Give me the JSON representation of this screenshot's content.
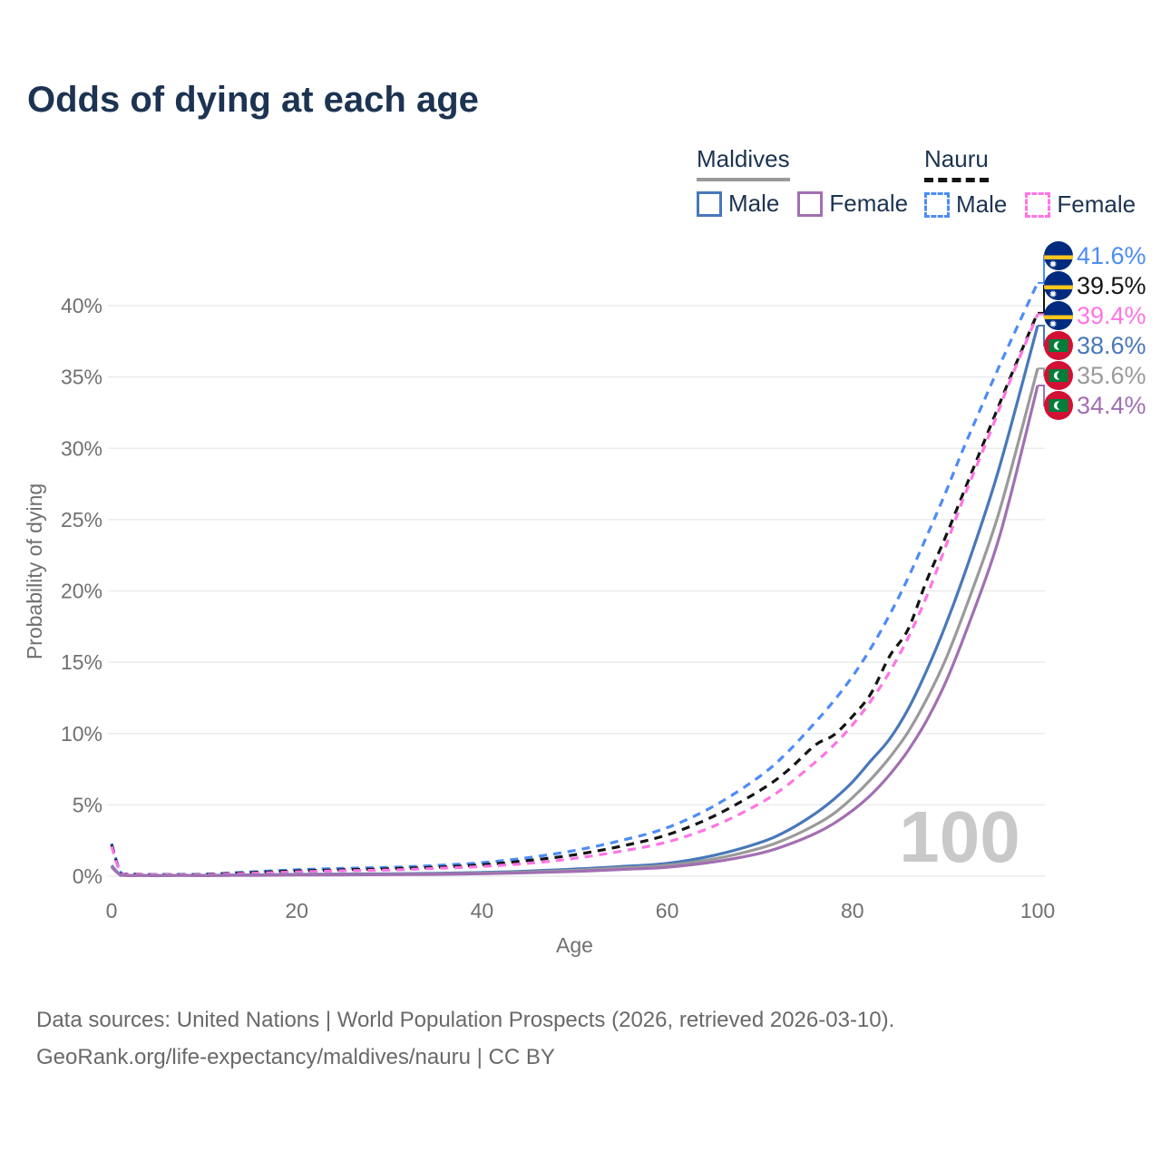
{
  "title": "Odds of dying at each age",
  "colors": {
    "title_navy": "#1c3351",
    "axis_gray": "#707070",
    "grid_gray": "#ececec",
    "watermark_gray": "#c9c9c9",
    "footer_gray": "#696969"
  },
  "legend": {
    "groups": [
      {
        "country": "Maldives",
        "style": "solid",
        "sample_color": "#9a9a9a",
        "items": [
          {
            "label": "Male",
            "color": "#4878b9"
          },
          {
            "label": "Female",
            "color": "#a26fb2"
          }
        ]
      },
      {
        "country": "Nauru",
        "style": "dashed",
        "sample_color": "#141414",
        "items": [
          {
            "label": "Male",
            "color": "#4d8cf5"
          },
          {
            "label": "Female",
            "color": "#ff74e4"
          }
        ]
      }
    ]
  },
  "chart_data": {
    "type": "line",
    "title": "Odds of dying at each age",
    "xlabel": "Age",
    "ylabel": "Probability of dying",
    "xlim": [
      0,
      100
    ],
    "ylim": [
      0,
      44
    ],
    "x_ticks": [
      0,
      20,
      40,
      60,
      80,
      100
    ],
    "y_ticks": [
      0,
      5,
      10,
      15,
      20,
      25,
      30,
      35,
      40
    ],
    "y_tick_suffix": "%",
    "grid": true,
    "legend_position": "top-right",
    "watermark": "100",
    "x": [
      0,
      1,
      2,
      5,
      10,
      15,
      20,
      25,
      30,
      35,
      40,
      45,
      50,
      55,
      60,
      65,
      70,
      73,
      76,
      78,
      80,
      82,
      84,
      86,
      88,
      90,
      92,
      95,
      97,
      100
    ],
    "series": [
      {
        "name": "Nauru Male",
        "country": "Nauru",
        "sex": "Male",
        "style": "dashed",
        "color": "#4d8cf5",
        "flag_icon": "nauru-flag",
        "end_label": "41.6%",
        "values": [
          2.3,
          0.25,
          0.15,
          0.12,
          0.14,
          0.3,
          0.45,
          0.55,
          0.62,
          0.75,
          0.95,
          1.3,
          1.8,
          2.5,
          3.4,
          4.9,
          7.0,
          8.7,
          10.8,
          12.3,
          14.0,
          16.0,
          18.3,
          20.9,
          23.8,
          26.8,
          30.0,
          34.5,
          37.4,
          41.6
        ]
      },
      {
        "name": "Nauru",
        "country": "Nauru",
        "sex": "Both",
        "style": "dashed",
        "color": "#141414",
        "flag_icon": "nauru-flag",
        "end_label": "39.5%",
        "values": [
          2.2,
          0.22,
          0.14,
          0.11,
          0.12,
          0.25,
          0.37,
          0.45,
          0.52,
          0.63,
          0.8,
          1.1,
          1.5,
          2.1,
          2.9,
          4.2,
          6.0,
          7.4,
          9.2,
          9.9,
          11.2,
          12.8,
          15.4,
          17.3,
          20.7,
          23.7,
          26.9,
          31.7,
          34.9,
          39.5
        ]
      },
      {
        "name": "Nauru Female",
        "country": "Nauru",
        "sex": "Female",
        "style": "dashed",
        "color": "#ff74e4",
        "flag_icon": "nauru-flag",
        "end_label": "39.4%",
        "values": [
          2.1,
          0.2,
          0.12,
          0.1,
          0.1,
          0.2,
          0.3,
          0.38,
          0.43,
          0.55,
          0.68,
          0.9,
          1.25,
          1.75,
          2.4,
          3.5,
          5.1,
          6.4,
          8.0,
          9.2,
          10.6,
          12.3,
          14.3,
          16.7,
          19.6,
          23.0,
          26.5,
          31.3,
          34.7,
          39.4
        ]
      },
      {
        "name": "Maldives Male",
        "country": "Maldives",
        "sex": "Male",
        "style": "solid",
        "color": "#4878b9",
        "flag_icon": "maldives-flag",
        "end_label": "38.6%",
        "values": [
          0.75,
          0.08,
          0.05,
          0.04,
          0.05,
          0.09,
          0.13,
          0.15,
          0.17,
          0.2,
          0.26,
          0.36,
          0.5,
          0.68,
          0.9,
          1.45,
          2.35,
          3.2,
          4.4,
          5.4,
          6.6,
          8.1,
          9.6,
          11.7,
          14.4,
          17.5,
          21.0,
          26.8,
          31.3,
          38.6
        ]
      },
      {
        "name": "Maldives",
        "country": "Maldives",
        "sex": "Both",
        "style": "solid",
        "color": "#9a9a9a",
        "flag_icon": "maldives-flag",
        "end_label": "35.6%",
        "values": [
          0.7,
          0.07,
          0.05,
          0.04,
          0.04,
          0.07,
          0.1,
          0.12,
          0.14,
          0.16,
          0.21,
          0.29,
          0.41,
          0.57,
          0.76,
          1.2,
          1.95,
          2.65,
          3.6,
          4.4,
          5.5,
          6.8,
          8.3,
          10.1,
          12.4,
          15.1,
          18.4,
          23.8,
          28.2,
          35.6
        ]
      },
      {
        "name": "Maldives Female",
        "country": "Maldives",
        "sex": "Female",
        "style": "solid",
        "color": "#a26fb2",
        "flag_icon": "maldives-flag",
        "end_label": "34.4%",
        "values": [
          0.65,
          0.06,
          0.04,
          0.03,
          0.04,
          0.06,
          0.08,
          0.09,
          0.11,
          0.13,
          0.17,
          0.24,
          0.33,
          0.47,
          0.63,
          1.0,
          1.6,
          2.2,
          3.0,
          3.7,
          4.6,
          5.7,
          7.1,
          8.8,
          10.9,
          13.5,
          16.7,
          22.0,
          26.5,
          34.4
        ]
      }
    ],
    "flag_colors": {
      "nauru": {
        "field": "#002b7f",
        "stripe": "#ffc61e",
        "star": "#ffffff"
      },
      "maldives": {
        "field": "#d21034",
        "panel": "#007e3a",
        "crescent": "#ffffff"
      }
    }
  },
  "footer": {
    "line1": "Data sources: United Nations | World Population Prospects (2026, retrieved 2026-03-10).",
    "line2": "GeoRank.org/life-expectancy/maldives/nauru | CC BY"
  }
}
